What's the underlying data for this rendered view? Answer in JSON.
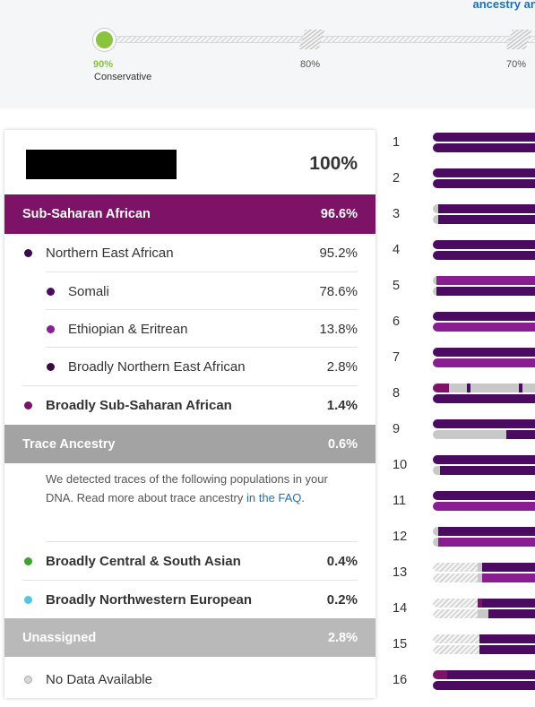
{
  "top": {
    "link_text": "ancestry ana",
    "levels": [
      {
        "label": "90%"
      },
      {
        "label": "80%"
      },
      {
        "label": "70%"
      }
    ],
    "selected_level_name": "Conservative"
  },
  "card": {
    "total": "100%",
    "sections": [
      {
        "name": "Sub-Saharan African",
        "pct": "96.6%",
        "color": "#7c1367"
      },
      {
        "name": "Trace Ancestry",
        "pct": "0.6%",
        "color": "#a3a3a3"
      },
      {
        "name": "Unassigned",
        "pct": "2.8%",
        "color": "#b9b9b9"
      }
    ],
    "rows": [
      {
        "label": "Northern East African",
        "pct": "95.2%",
        "color": "#3b0a4a"
      },
      {
        "label": "Somali",
        "pct": "78.6%",
        "color": "#4b0b61"
      },
      {
        "label": "Ethiopian & Eritrean",
        "pct": "13.8%",
        "color": "#8a1d92"
      },
      {
        "label": "Broadly Northern East African",
        "pct": "2.8%",
        "color": "#3a0b40"
      },
      {
        "label": "Broadly Sub-Saharan African",
        "pct": "1.4%",
        "color": "#7c1367"
      },
      {
        "label": "Broadly Central & South Asian",
        "pct": "0.4%",
        "color": "#3aa52a"
      },
      {
        "label": "Broadly Northwestern European",
        "pct": "0.2%",
        "color": "#4fc7e6"
      },
      {
        "label": "No Data Available",
        "pct": "",
        "color": "#cccccc"
      }
    ],
    "trace_description": "We detected traces of the following populations in your DNA. Read more about trace ancestry ",
    "trace_link": "in the FAQ",
    "trace_end": "."
  },
  "chromosomes": [
    "1",
    "2",
    "3",
    "4",
    "5",
    "6",
    "7",
    "8",
    "9",
    "10",
    "11",
    "12",
    "13",
    "14",
    "15",
    "16"
  ],
  "colors": {
    "somali": "#4b0b61",
    "ethiopian": "#8a1d92",
    "sub_saharan": "#7c1367",
    "no_data": "#c8c8c8"
  }
}
